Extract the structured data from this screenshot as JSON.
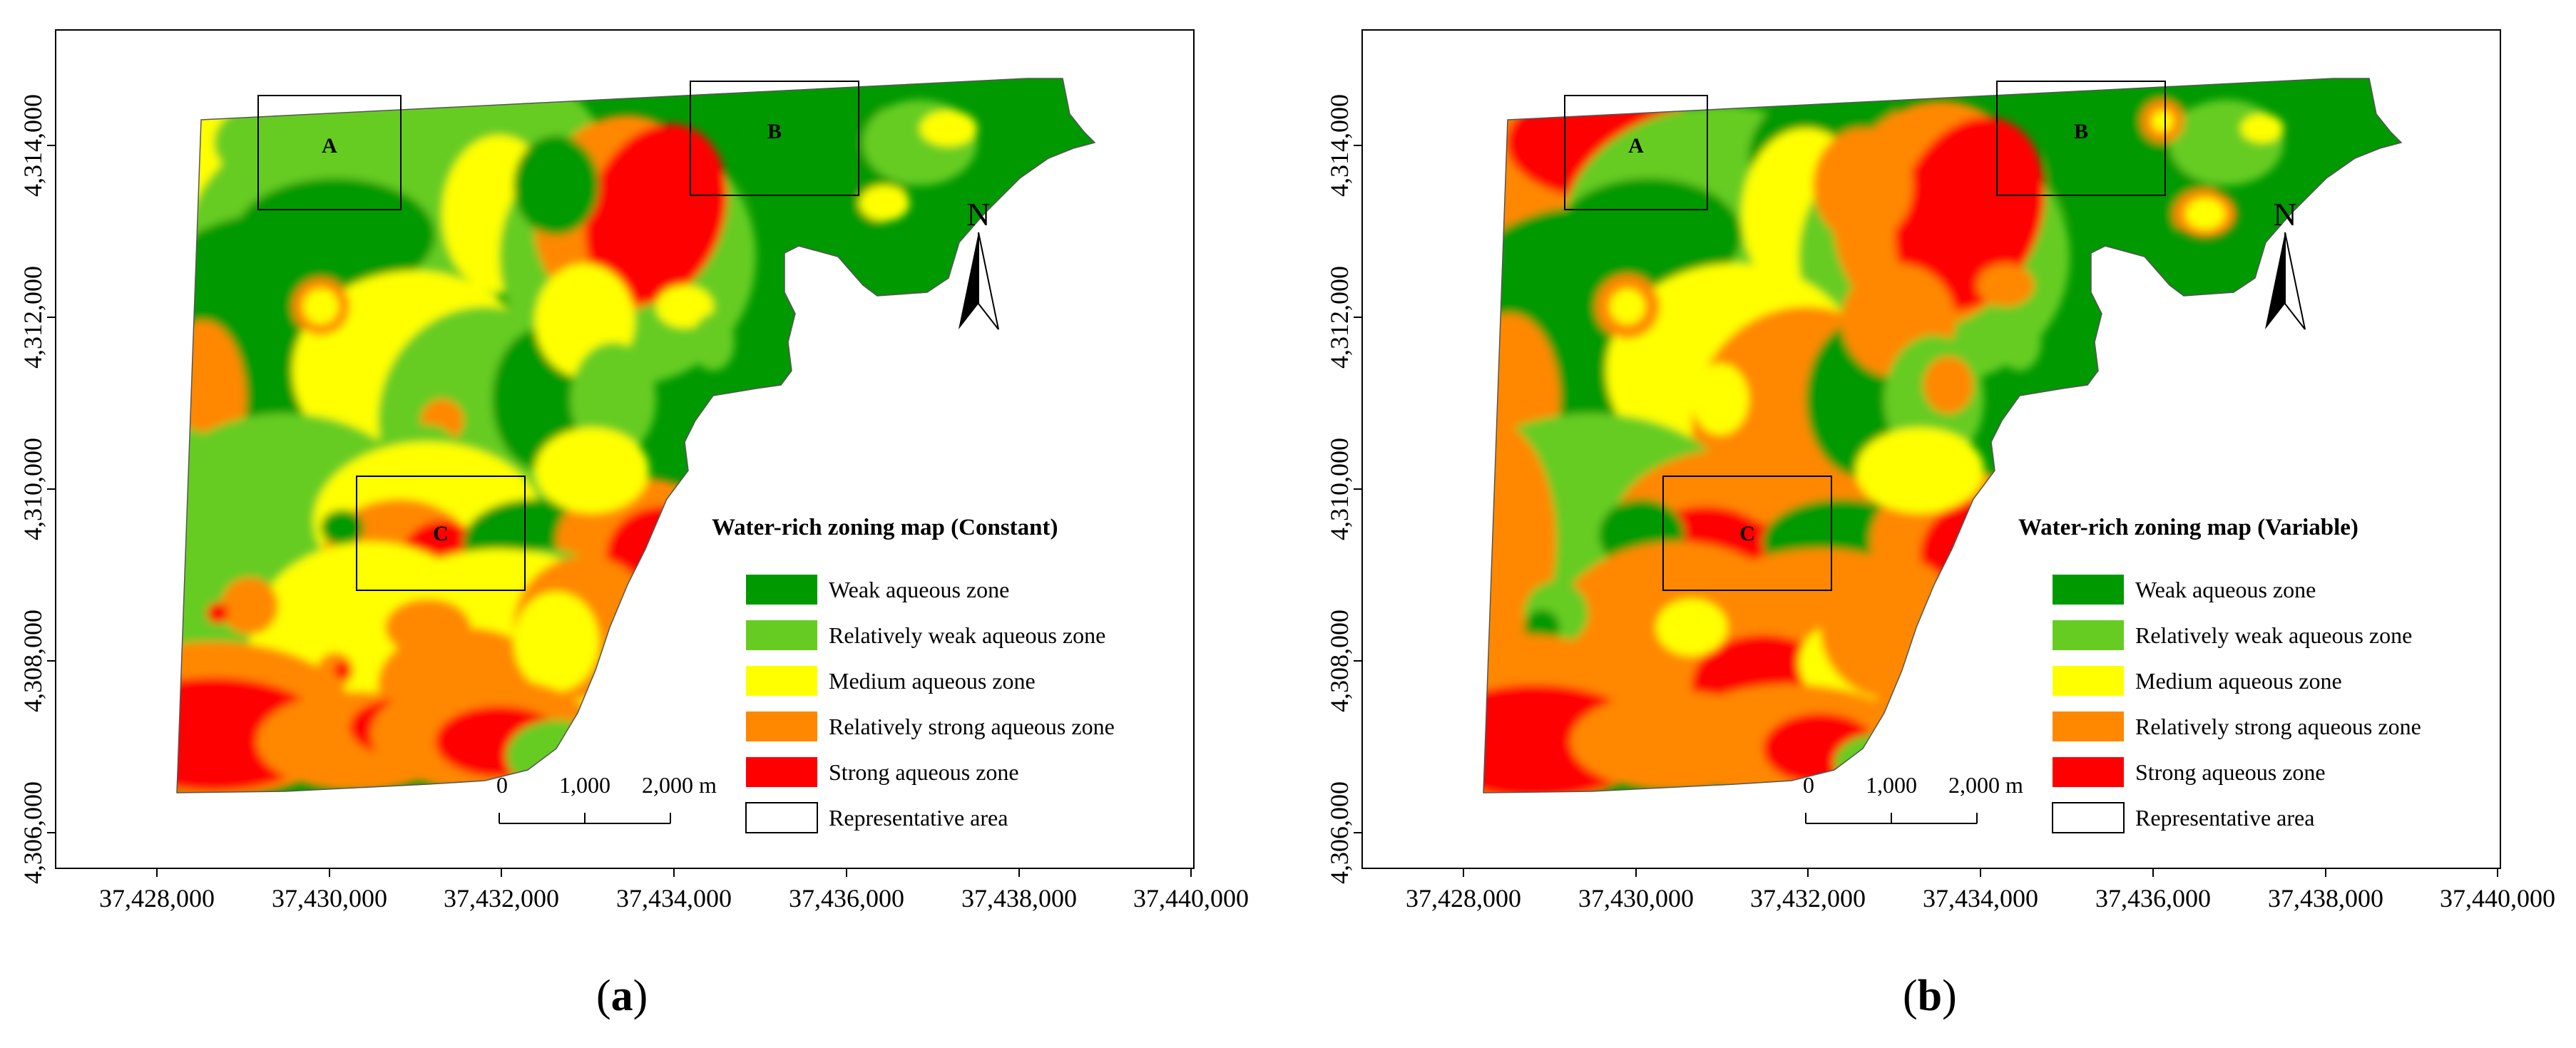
{
  "colors": {
    "weak": "#009900",
    "relatively_weak": "#66cc22",
    "medium": "#ffff00",
    "relatively_strong": "#ff8800",
    "strong": "#ff0000",
    "frame": "#000000"
  },
  "legend_items": [
    {
      "key": "weak",
      "label": "Weak aqueous zone"
    },
    {
      "key": "relatively_weak",
      "label": "Relatively weak aqueous zone"
    },
    {
      "key": "medium",
      "label": "Medium aqueous zone"
    },
    {
      "key": "relatively_strong",
      "label": "Relatively strong aqueous zone"
    },
    {
      "key": "strong",
      "label": "Strong aqueous zone"
    },
    {
      "key": "representative",
      "label": "Representative area"
    }
  ],
  "x_ticks": [
    "37,428,000",
    "37,430,000",
    "37,432,000",
    "37,434,000",
    "37,436,000",
    "37,438,000",
    "37,440,000"
  ],
  "y_ticks": [
    "4,314,000",
    "4,312,000",
    "4,310,000",
    "4,308,000",
    "4,306,000"
  ],
  "scale_bar": {
    "labels": [
      "0",
      "1,000",
      "2,000 m"
    ]
  },
  "north_label": "N",
  "area_labels": [
    "A",
    "B",
    "C"
  ],
  "panels": [
    {
      "id": "a",
      "legend_title": "Water-rich zoning map (Constant)",
      "caption": "a"
    },
    {
      "id": "b",
      "legend_title": "Water-rich zoning map (Variable)",
      "caption": "b"
    }
  ]
}
